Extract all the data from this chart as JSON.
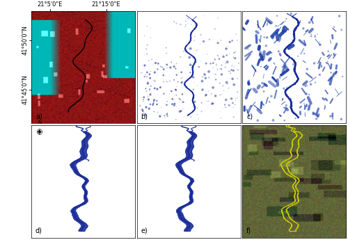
{
  "figure_width": 5.0,
  "figure_height": 3.45,
  "dpi": 100,
  "panels": [
    {
      "label": "a)",
      "row": 0,
      "col": 0
    },
    {
      "label": "b)",
      "row": 0,
      "col": 1
    },
    {
      "label": "c)",
      "row": 0,
      "col": 2
    },
    {
      "label": "d)",
      "row": 1,
      "col": 0
    },
    {
      "label": "e)",
      "row": 1,
      "col": 1
    },
    {
      "label": "f)",
      "row": 1,
      "col": 2
    }
  ],
  "top_tick_labels": [
    "21°5'0\"E",
    "21°15'0\"E"
  ],
  "left_tick_labels": [
    "41°50'0\"N",
    "41°45'0\"N"
  ],
  "panel_border_color": "#000000",
  "label_fontsize": 7,
  "tick_fontsize": 6,
  "background_color": "#ffffff",
  "river_color": "#1a2d99",
  "google_earth_yellow": "#cccc00"
}
